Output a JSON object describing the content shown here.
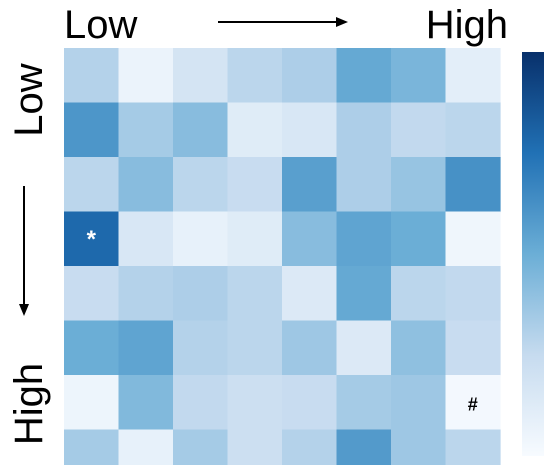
{
  "chart_data": {
    "type": "heatmap",
    "x_axis": {
      "low_label": "Low",
      "high_label": "High"
    },
    "y_axis": {
      "low_label": "Low",
      "high_label": "High"
    },
    "colormap": {
      "min_color": "#f7fbff",
      "max_color": "#08306b",
      "name": "Blues"
    },
    "value_range": [
      0,
      1
    ],
    "rows": 8,
    "cols": 8,
    "values": [
      [
        0.3,
        0.06,
        0.18,
        0.28,
        0.32,
        0.52,
        0.46,
        0.1
      ],
      [
        0.6,
        0.34,
        0.42,
        0.12,
        0.16,
        0.32,
        0.26,
        0.28
      ],
      [
        0.28,
        0.42,
        0.28,
        0.24,
        0.56,
        0.32,
        0.38,
        0.62
      ],
      [
        0.78,
        0.16,
        0.08,
        0.12,
        0.42,
        0.54,
        0.5,
        0.04
      ],
      [
        0.24,
        0.3,
        0.32,
        0.28,
        0.14,
        0.52,
        0.28,
        0.26
      ],
      [
        0.5,
        0.54,
        0.3,
        0.28,
        0.36,
        0.14,
        0.4,
        0.24
      ],
      [
        0.05,
        0.44,
        0.26,
        0.22,
        0.24,
        0.34,
        0.36,
        0.02
      ],
      [
        0.34,
        0.08,
        0.34,
        0.22,
        0.3,
        0.58,
        0.36,
        0.28
      ]
    ],
    "markers": [
      {
        "row": 3,
        "col": 0,
        "symbol": "*",
        "color": "#ffffff"
      },
      {
        "row": 6,
        "col": 7,
        "symbol": "#",
        "color": "#000000"
      }
    ]
  }
}
